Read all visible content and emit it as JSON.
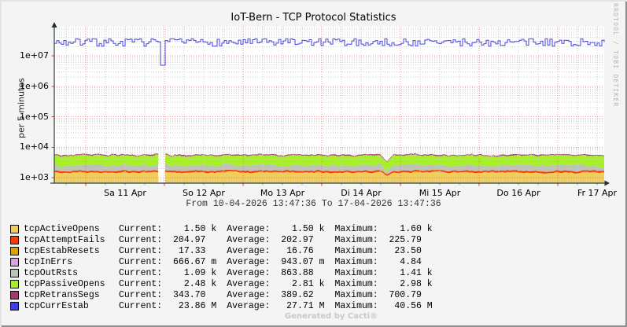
{
  "header": {
    "title": "IoT-Bern - TCP Protocol Statistics"
  },
  "axes": {
    "y_label": "per 5 minutes",
    "y_ticks": [
      {
        "label": "1e+03",
        "value": 1000
      },
      {
        "label": "1e+04",
        "value": 10000
      },
      {
        "label": "1e+05",
        "value": 100000
      },
      {
        "label": "1e+06",
        "value": 1000000
      },
      {
        "label": "1e+07",
        "value": 10000000
      }
    ],
    "x_ticks": [
      {
        "label": "Sa 11 Apr"
      },
      {
        "label": "So 12 Apr"
      },
      {
        "label": "Mo 13 Apr"
      },
      {
        "label": "Di 14 Apr"
      },
      {
        "label": "Mi 15 Apr"
      },
      {
        "label": "Do 16 Apr"
      },
      {
        "label": "Fr 17 Apr"
      }
    ],
    "range_label": "From 10-04-2026 13:47:36 To 17-04-2026 13:47:36"
  },
  "legend": {
    "labels": {
      "current": "Current:",
      "average": "Average:",
      "maximum": "Maximum:"
    },
    "rows": [
      {
        "name": "tcpActiveOpens",
        "color": "#F0CE5A",
        "current": "    1.50 k",
        "average": "    1.50 k",
        "maximum": "    1.60 k"
      },
      {
        "name": "tcpAttemptFails",
        "color": "#FB3B04",
        "current": "  204.97  ",
        "average": "  202.97  ",
        "maximum": "  225.79  "
      },
      {
        "name": "tcpEstabResets",
        "color": "#DCA001",
        "current": "   17.33  ",
        "average": "   16.76  ",
        "maximum": "   23.50  "
      },
      {
        "name": "tcpInErrs",
        "color": "#D5A5DC",
        "current": "  666.67 m",
        "average": "  943.07 m",
        "maximum": "    4.84  "
      },
      {
        "name": "tcpOutRsts",
        "color": "#BBC3B5",
        "current": "    1.09 k",
        "average": "  863.88  ",
        "maximum": "    1.41 k"
      },
      {
        "name": "tcpPassiveOpens",
        "color": "#A6EE25",
        "current": "    2.48 k",
        "average": "    2.81 k",
        "maximum": "    2.98 k"
      },
      {
        "name": "tcpRetransSegs",
        "color": "#A43A6B",
        "current": "  343.70  ",
        "average": "  389.62  ",
        "maximum": "  700.79  "
      },
      {
        "name": "tcpCurrEstab",
        "color": "#413CF0",
        "current": "   23.86 M",
        "average": "   27.71 M",
        "maximum": "   40.56 M"
      }
    ]
  },
  "watermarks": {
    "rrdtool": "RRDTOOL / TOBI OETIKER",
    "cacti": "Generated by Cacti®"
  },
  "chart_data": {
    "type": "area",
    "subtype": "stacked-areas-plus-line, logarithmic y axis",
    "title": "IoT-Bern - TCP Protocol Statistics",
    "ylabel": "per 5 minutes",
    "y_scale": "log10",
    "ylim": [
      650,
      90000000
    ],
    "y_ticks": [
      "1e+03",
      "1e+04",
      "1e+05",
      "1e+06",
      "1e+07"
    ],
    "x_start": "10-04-2026 13:47:36",
    "x_end": "17-04-2026 13:47:36",
    "x_ticks": [
      "Sa 11 Apr",
      "So 12 Apr",
      "Mo 13 Apr",
      "Di 14 Apr",
      "Mi 15 Apr",
      "Do 16 Apr",
      "Fr 17 Apr"
    ],
    "grid": true,
    "legend_position": "bottom",
    "series": [
      {
        "name": "tcpActiveOpens",
        "style": "stacked-area",
        "color": "#F0CE5A",
        "stats": {
          "current": 1500,
          "average": 1500,
          "maximum": 1600
        }
      },
      {
        "name": "tcpAttemptFails",
        "style": "stacked-area",
        "color": "#FB3B04",
        "stats": {
          "current": 204.97,
          "average": 202.97,
          "maximum": 225.79
        }
      },
      {
        "name": "tcpEstabResets",
        "style": "stacked-area",
        "color": "#DCA001",
        "stats": {
          "current": 17.33,
          "average": 16.76,
          "maximum": 23.5
        }
      },
      {
        "name": "tcpInErrs",
        "style": "stacked-area",
        "color": "#D5A5DC",
        "stats": {
          "current": 0.66667,
          "average": 0.94307,
          "maximum": 4.84
        }
      },
      {
        "name": "tcpOutRsts",
        "style": "stacked-area",
        "color": "#BBC3B5",
        "stats": {
          "current": 1090,
          "average": 863.88,
          "maximum": 1410
        }
      },
      {
        "name": "tcpPassiveOpens",
        "style": "stacked-area",
        "color": "#A6EE25",
        "stats": {
          "current": 2480,
          "average": 2810,
          "maximum": 2980
        }
      },
      {
        "name": "tcpRetransSegs",
        "style": "stacked-area",
        "color": "#A43A6B",
        "stats": {
          "current": 343.7,
          "average": 389.62,
          "maximum": 700.79
        }
      },
      {
        "name": "tcpCurrEstab",
        "style": "line",
        "color": "#4744E4",
        "stats": {
          "current": 23860000,
          "average": 27710000,
          "maximum": 40560000
        }
      }
    ],
    "events": {
      "data_gap_x_frac": 0.195,
      "stack_dip_x_frac": 0.605
    }
  }
}
